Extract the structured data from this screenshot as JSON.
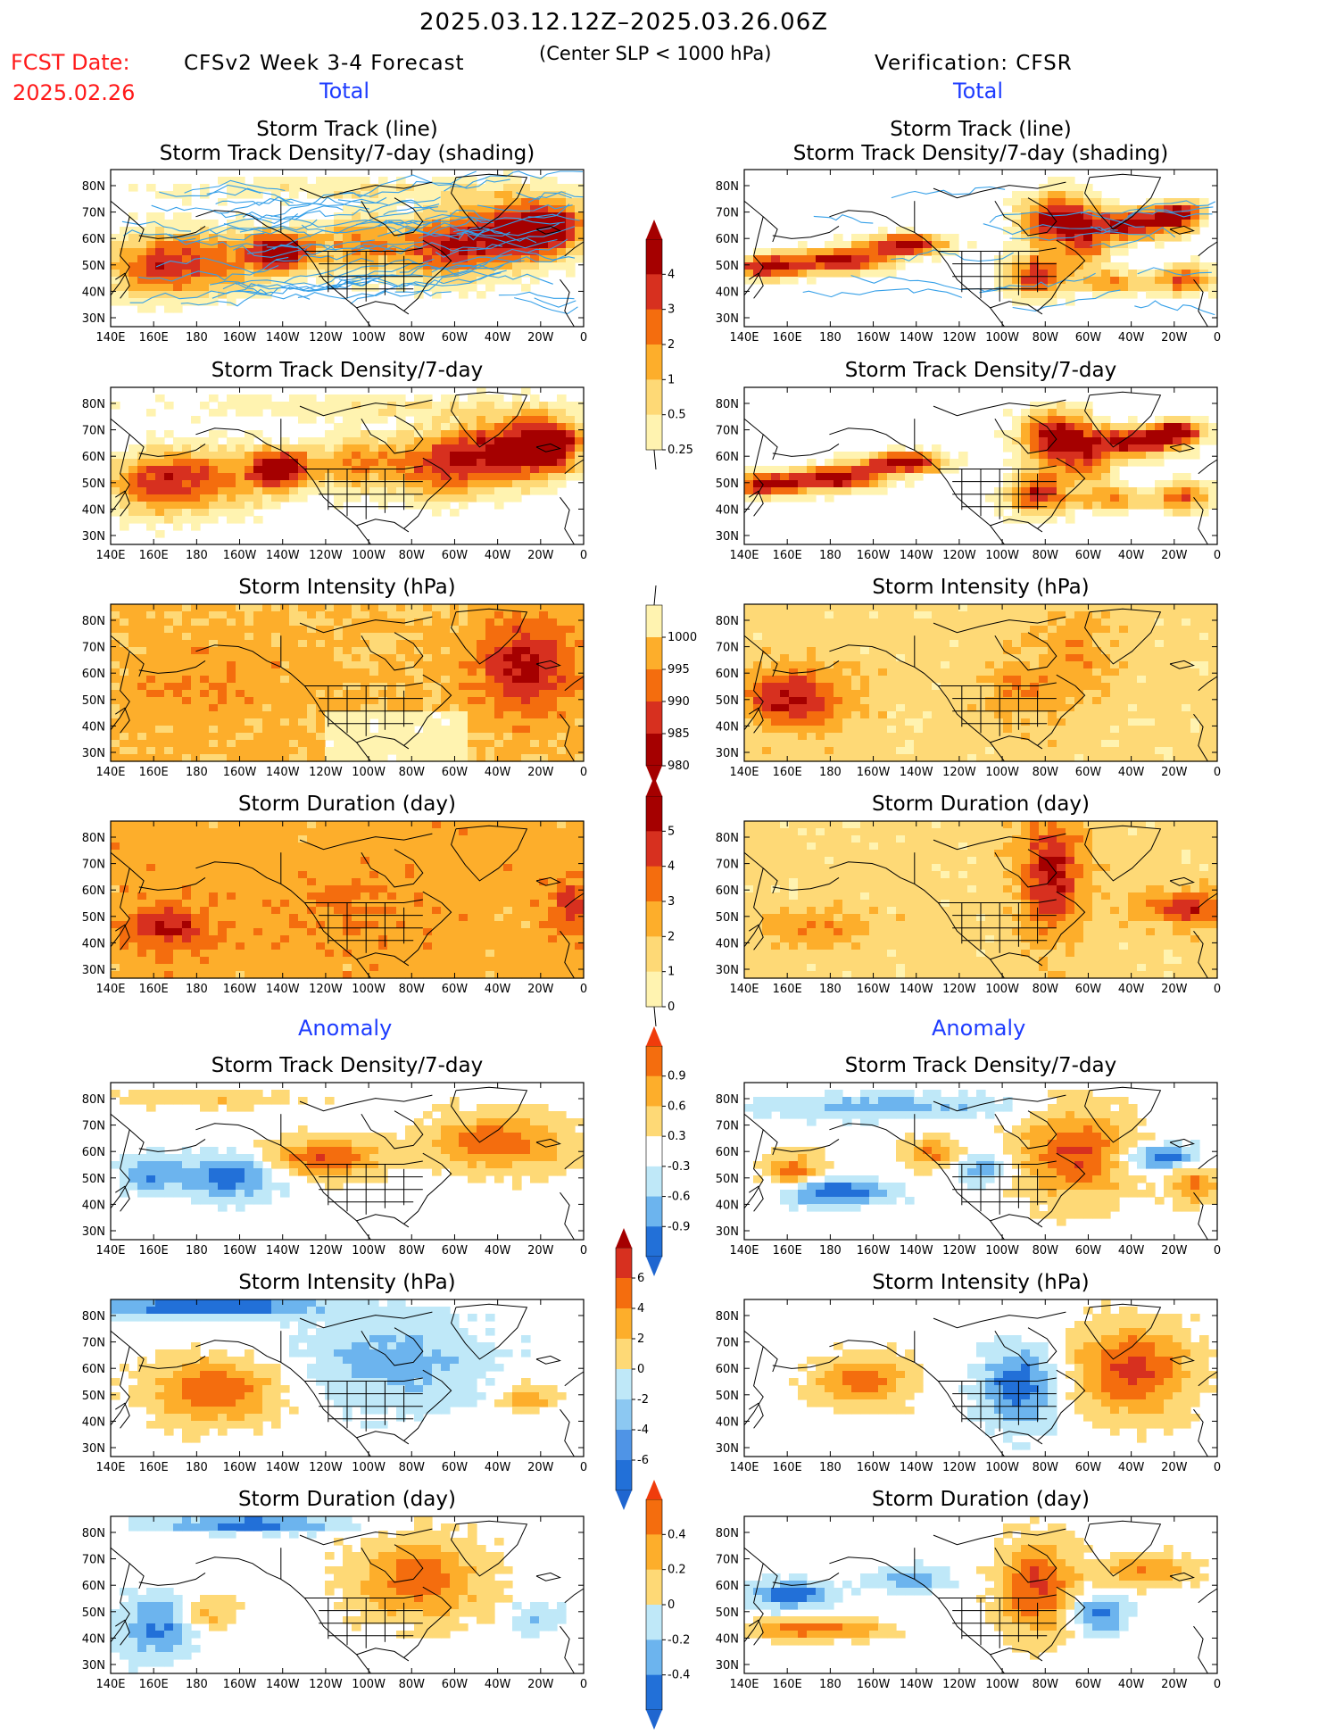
{
  "header": {
    "date_range": "2025.03.12.12Z–2025.03.26.06Z",
    "fcst_label": "FCST Date:",
    "fcst_date": "2025.02.26",
    "model": "CFSv2 Week 3-4 Forecast",
    "condition": "(Center SLP < 1000 hPa)",
    "verification": "Verification: CFSR",
    "total_left": "Total",
    "total_right": "Total",
    "anomaly_left": "Anomaly",
    "anomaly_right": "Anomaly"
  },
  "axes": {
    "lon_labels": [
      "140E",
      "160E",
      "180",
      "160W",
      "140W",
      "120W",
      "100W",
      "80W",
      "60W",
      "40W",
      "20W",
      "0"
    ],
    "lat_labels": [
      "80N",
      "70N",
      "60N",
      "50N",
      "40N",
      "30N"
    ]
  },
  "panels": [
    {
      "id": "fc-track",
      "title1": "Storm Track (line)",
      "title2": "Storm Track Density/7-day (shading)",
      "palette": "warm",
      "tracks": true,
      "pattern": "fc-dens"
    },
    {
      "id": "ob-track",
      "title1": "Storm Track (line)",
      "title2": "Storm Track Density/7-day (shading)",
      "palette": "warm",
      "tracks": true,
      "pattern": "ob-dens"
    },
    {
      "id": "fc-dens",
      "title1": "Storm Track Density/7-day",
      "title2": "",
      "palette": "warm",
      "tracks": false,
      "pattern": "fc-dens"
    },
    {
      "id": "ob-dens",
      "title1": "Storm Track Density/7-day",
      "title2": "",
      "palette": "warm",
      "tracks": false,
      "pattern": "ob-dens"
    },
    {
      "id": "fc-int",
      "title1": "Storm Intensity (hPa)",
      "title2": "",
      "palette": "warm",
      "tracks": false,
      "pattern": "fc-int"
    },
    {
      "id": "ob-int",
      "title1": "Storm Intensity (hPa)",
      "title2": "",
      "palette": "warm",
      "tracks": false,
      "pattern": "ob-int"
    },
    {
      "id": "fc-dur",
      "title1": "Storm Duration (day)",
      "title2": "",
      "palette": "warm",
      "tracks": false,
      "pattern": "fc-dur"
    },
    {
      "id": "ob-dur",
      "title1": "Storm Duration (day)",
      "title2": "",
      "palette": "warm",
      "tracks": false,
      "pattern": "ob-dur"
    },
    {
      "id": "fc-adens",
      "title1": "Storm Track Density/7-day",
      "title2": "",
      "palette": "div",
      "tracks": false,
      "pattern": "fc-adens"
    },
    {
      "id": "ob-adens",
      "title1": "Storm Track Density/7-day",
      "title2": "",
      "palette": "div",
      "tracks": false,
      "pattern": "ob-adens"
    },
    {
      "id": "fc-aint",
      "title1": "Storm Intensity (hPa)",
      "title2": "",
      "palette": "div",
      "tracks": false,
      "pattern": "fc-aint"
    },
    {
      "id": "ob-aint",
      "title1": "Storm Intensity (hPa)",
      "title2": "",
      "palette": "div",
      "tracks": false,
      "pattern": "ob-aint"
    },
    {
      "id": "fc-adur",
      "title1": "Storm Duration (day)",
      "title2": "",
      "palette": "div",
      "tracks": false,
      "pattern": "fc-adur"
    },
    {
      "id": "ob-adur",
      "title1": "Storm Duration (day)",
      "title2": "",
      "palette": "div",
      "tracks": false,
      "pattern": "ob-adur"
    }
  ],
  "colorbars": [
    {
      "id": "cb-density",
      "labels": [
        "4",
        "3",
        "2",
        "1",
        "0.5",
        "0.25"
      ],
      "colors": [
        "#a50000",
        "#d7301f",
        "#f46d0e",
        "#fdae2b",
        "#fed976",
        "#fff3b0"
      ],
      "top_arrow": "#a50000",
      "bottom_arrow": null
    },
    {
      "id": "cb-intensity",
      "labels": [
        "1000",
        "995",
        "990",
        "985",
        "980"
      ],
      "colors": [
        "#fff3b0",
        "#fdae2b",
        "#f46d0e",
        "#d7301f",
        "#a50000"
      ],
      "top_arrow": null,
      "bottom_arrow": "#a50000"
    },
    {
      "id": "cb-duration",
      "labels": [
        "5",
        "4",
        "3",
        "2",
        "1",
        "0"
      ],
      "colors": [
        "#a50000",
        "#d7301f",
        "#f46d0e",
        "#fdae2b",
        "#fed976",
        "#fff3b0"
      ],
      "top_arrow": "#a50000",
      "bottom_arrow": null
    },
    {
      "id": "cb-adens",
      "labels": [
        "0.9",
        "0.6",
        "0.3",
        "-0.3",
        "-0.6",
        "-0.9"
      ],
      "colors": [
        "#f46d0e",
        "#fdae2b",
        "#fed976",
        "#ffffff",
        "#bfe8f8",
        "#6cb4ee",
        "#2270d8"
      ],
      "top_arrow": "#f03c0c",
      "bottom_arrow": "#1f66d0"
    },
    {
      "id": "cb-aint",
      "labels": [
        "6",
        "4",
        "2",
        "0",
        "-2",
        "-4",
        "-6"
      ],
      "colors": [
        "#d7301f",
        "#f46d0e",
        "#fdae2b",
        "#fed976",
        "#bfe8f8",
        "#8cc8f2",
        "#4f94e6",
        "#2270d8"
      ],
      "top_arrow": "#a50000",
      "bottom_arrow": "#1f66d0"
    },
    {
      "id": "cb-adur",
      "labels": [
        "0.4",
        "0.2",
        "0",
        "-0.2",
        "-0.4"
      ],
      "colors": [
        "#f46d0e",
        "#fdae2b",
        "#fed976",
        "#bfe8f8",
        "#6cb4ee",
        "#2270d8"
      ],
      "top_arrow": "#f03c0c",
      "bottom_arrow": "#1f66d0"
    }
  ],
  "colors": {
    "red": "#ff1a1a",
    "blue": "#1e3cff",
    "track": "#36a0e8"
  }
}
